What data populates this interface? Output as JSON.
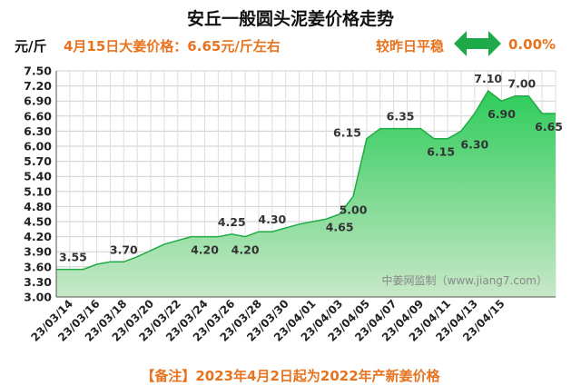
{
  "header": {
    "title": "安丘一般圆头泥姜价格走势",
    "unit": "元/斤",
    "price_note": "4月15日大姜价格：6.65元/斤左右",
    "compare_label": "较昨日平稳",
    "compare_value": "0.00%",
    "compare_icon": "double-arrow-icon"
  },
  "footnote": "【备注】2023年4月2日起为2022年产新姜价格",
  "watermark": "中姜网监制（www.jiang7.com）",
  "colors": {
    "area_top": "#2ecc5a",
    "area_bottom": "#c8e8c8",
    "line": "#22aa44",
    "accent": "#e8731e",
    "arrow": "#1faa4a"
  },
  "chart_data": {
    "type": "area",
    "title": "安丘一般圆头泥姜价格走势",
    "ylabel": "元/斤",
    "xlabel": "",
    "ylim": [
      3.0,
      7.5
    ],
    "yticks": [
      "3.00",
      "3.30",
      "3.60",
      "3.90",
      "4.20",
      "4.50",
      "4.80",
      "5.10",
      "5.40",
      "5.70",
      "6.00",
      "6.30",
      "6.60",
      "6.90",
      "7.20",
      "7.50"
    ],
    "x_tick_labels": [
      "23/03/14",
      "23/03/16",
      "23/03/18",
      "23/03/20",
      "23/03/22",
      "23/03/24",
      "23/03/26",
      "23/03/28",
      "23/03/30",
      "23/04/01",
      "23/04/03",
      "23/04/05",
      "23/04/07",
      "23/04/09",
      "23/04/11",
      "23/04/13",
      "23/04/15"
    ],
    "points": [
      {
        "x": 0,
        "y": 3.55
      },
      {
        "x": 2,
        "y": 3.55
      },
      {
        "x": 3,
        "y": 3.65
      },
      {
        "x": 4,
        "y": 3.7
      },
      {
        "x": 5,
        "y": 3.7
      },
      {
        "x": 6,
        "y": 3.8
      },
      {
        "x": 8,
        "y": 4.05
      },
      {
        "x": 10,
        "y": 4.2
      },
      {
        "x": 12,
        "y": 4.2
      },
      {
        "x": 13,
        "y": 4.25
      },
      {
        "x": 14,
        "y": 4.2
      },
      {
        "x": 15,
        "y": 4.3
      },
      {
        "x": 16,
        "y": 4.3
      },
      {
        "x": 18,
        "y": 4.45
      },
      {
        "x": 19,
        "y": 4.5
      },
      {
        "x": 20,
        "y": 4.55
      },
      {
        "x": 21,
        "y": 4.65
      },
      {
        "x": 22,
        "y": 5.0
      },
      {
        "x": 23,
        "y": 6.15
      },
      {
        "x": 24,
        "y": 6.35
      },
      {
        "x": 27,
        "y": 6.35
      },
      {
        "x": 28,
        "y": 6.15
      },
      {
        "x": 29,
        "y": 6.15
      },
      {
        "x": 30,
        "y": 6.3
      },
      {
        "x": 31,
        "y": 6.65
      },
      {
        "x": 32,
        "y": 7.1
      },
      {
        "x": 33,
        "y": 6.9
      },
      {
        "x": 34,
        "y": 7.0
      },
      {
        "x": 35,
        "y": 7.0
      },
      {
        "x": 36,
        "y": 6.65
      },
      {
        "x": 37,
        "y": 6.65
      }
    ],
    "annotations": [
      {
        "x": 0,
        "y": 3.55,
        "text": "3.55",
        "pos": "above"
      },
      {
        "x": 5,
        "y": 3.7,
        "text": "3.70",
        "pos": "above"
      },
      {
        "x": 11,
        "y": 4.2,
        "text": "4.20",
        "pos": "below"
      },
      {
        "x": 13,
        "y": 4.25,
        "text": "4.25",
        "pos": "above"
      },
      {
        "x": 14,
        "y": 4.2,
        "text": "4.20",
        "pos": "below"
      },
      {
        "x": 16,
        "y": 4.3,
        "text": "4.30",
        "pos": "above"
      },
      {
        "x": 21,
        "y": 4.65,
        "text": "4.65",
        "pos": "below"
      },
      {
        "x": 22,
        "y": 5.0,
        "text": "5.00",
        "pos": "below"
      },
      {
        "x": 23,
        "y": 6.15,
        "text": "6.15",
        "pos": "left"
      },
      {
        "x": 25.5,
        "y": 6.35,
        "text": "6.35",
        "pos": "above"
      },
      {
        "x": 28.5,
        "y": 6.15,
        "text": "6.15",
        "pos": "below"
      },
      {
        "x": 31,
        "y": 6.3,
        "text": "6.30",
        "pos": "below"
      },
      {
        "x": 32,
        "y": 7.1,
        "text": "7.10",
        "pos": "above"
      },
      {
        "x": 33,
        "y": 6.9,
        "text": "6.90",
        "pos": "below"
      },
      {
        "x": 34.5,
        "y": 7.0,
        "text": "7.00",
        "pos": "above"
      },
      {
        "x": 36.5,
        "y": 6.65,
        "text": "6.65",
        "pos": "below"
      }
    ]
  }
}
